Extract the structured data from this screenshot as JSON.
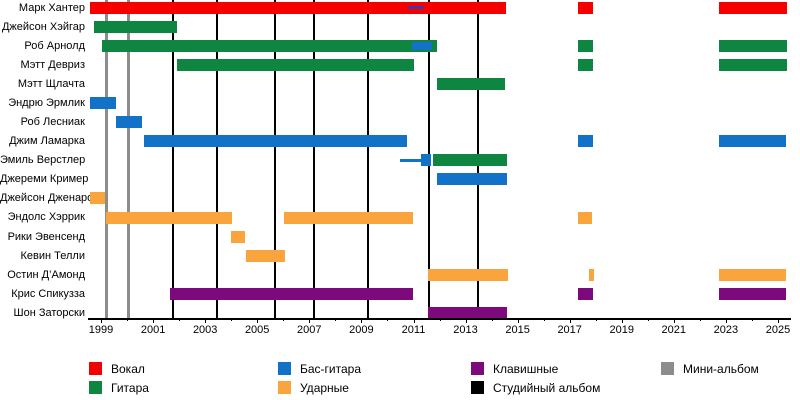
{
  "chart_data": {
    "type": "timeline",
    "title": "",
    "axis": {
      "start": 1998.5,
      "end": 2025.5,
      "minor_tick_every_years": 1,
      "labeled_tick_years": [
        1999,
        2001,
        2003,
        2005,
        2007,
        2009,
        2011,
        2013,
        2015,
        2017,
        2019,
        2021,
        2023,
        2025
      ]
    },
    "colors": {
      "vocals": "#f50000",
      "guitar": "#0e8540",
      "bass": "#1272c8",
      "drums": "#f9a43c",
      "keys": "#7d0a7d",
      "album": "#000000",
      "mini": "#8c8c8c",
      "hunter_programming": "#4335ab"
    },
    "members": [
      {
        "name": "Марк Хантер",
        "segments": [
          {
            "role": "vocals",
            "from": 1998.58,
            "to": 2014.55,
            "style": "bar"
          },
          {
            "role": "hunter_programming",
            "from": 2010.79,
            "to": 2011.4,
            "style": "thin"
          },
          {
            "role": "vocals",
            "from": 2017.3,
            "to": 2017.9,
            "style": "bar"
          },
          {
            "role": "vocals",
            "from": 2022.73,
            "to": 2025.35,
            "style": "bar"
          }
        ]
      },
      {
        "name": "Джейсон Хэйгар",
        "segments": [
          {
            "role": "guitar",
            "from": 1998.74,
            "to": 2001.93,
            "style": "bar"
          }
        ]
      },
      {
        "name": "Роб Арнолд",
        "segments": [
          {
            "role": "guitar",
            "from": 1999.05,
            "to": 2011.89,
            "style": "bar"
          },
          {
            "role": "bass",
            "from": 2010.93,
            "to": 2011.7,
            "style": "inset"
          },
          {
            "role": "guitar",
            "from": 2017.3,
            "to": 2017.9,
            "style": "bar"
          },
          {
            "role": "guitar",
            "from": 2022.73,
            "to": 2025.35,
            "style": "bar"
          }
        ]
      },
      {
        "name": "Мэтт Девриз",
        "segments": [
          {
            "role": "guitar",
            "from": 2001.93,
            "to": 2011.02,
            "style": "bar"
          },
          {
            "role": "guitar",
            "from": 2017.3,
            "to": 2017.9,
            "style": "bar"
          },
          {
            "role": "guitar",
            "from": 2022.73,
            "to": 2025.35,
            "style": "bar"
          }
        ]
      },
      {
        "name": "Мэтт Щлачта",
        "segments": [
          {
            "role": "guitar",
            "from": 2011.9,
            "to": 2014.53,
            "style": "bar"
          }
        ]
      },
      {
        "name": "Эндрю Эрмлик",
        "segments": [
          {
            "role": "bass",
            "from": 1998.58,
            "to": 1999.57,
            "style": "bar"
          }
        ]
      },
      {
        "name": "Роб Лесниак",
        "segments": [
          {
            "role": "bass",
            "from": 1999.57,
            "to": 2000.56,
            "style": "bar"
          }
        ]
      },
      {
        "name": "Джим Ламарка",
        "segments": [
          {
            "role": "bass",
            "from": 2000.66,
            "to": 2010.74,
            "style": "bar"
          },
          {
            "role": "bass",
            "from": 2017.33,
            "to": 2017.9,
            "style": "bar"
          },
          {
            "role": "bass",
            "from": 2022.74,
            "to": 2025.3,
            "style": "bar"
          }
        ]
      },
      {
        "name": "Эмиль Верстлер",
        "segments": [
          {
            "role": "bass",
            "from": 2010.48,
            "to": 2011.3,
            "style": "thin"
          },
          {
            "role": "bass",
            "from": 2011.3,
            "to": 2011.68,
            "style": "bar"
          },
          {
            "role": "guitar",
            "from": 2011.75,
            "to": 2014.58,
            "style": "bar"
          }
        ]
      },
      {
        "name": "Джереми Кример",
        "segments": [
          {
            "role": "bass",
            "from": 2011.89,
            "to": 2014.58,
            "style": "bar"
          }
        ]
      },
      {
        "name": "Джейсон Дженаро",
        "segments": [
          {
            "role": "drums",
            "from": 1998.58,
            "to": 1999.15,
            "style": "bar"
          }
        ]
      },
      {
        "name": "Эндолс Хэррик",
        "segments": [
          {
            "role": "drums",
            "from": 1999.18,
            "to": 2004.02,
            "style": "bar"
          },
          {
            "role": "drums",
            "from": 2006.03,
            "to": 2010.99,
            "style": "bar"
          },
          {
            "role": "drums",
            "from": 2017.3,
            "to": 2017.87,
            "style": "bar"
          }
        ]
      },
      {
        "name": "Рики Эвенсенд",
        "segments": [
          {
            "role": "drums",
            "from": 2003.98,
            "to": 2004.53,
            "style": "bar"
          }
        ]
      },
      {
        "name": "Кевин Телли",
        "segments": [
          {
            "role": "drums",
            "from": 2004.57,
            "to": 2006.06,
            "style": "bar"
          }
        ]
      },
      {
        "name": "Остин Д’Амонд",
        "segments": [
          {
            "role": "drums",
            "from": 2011.54,
            "to": 2014.62,
            "style": "bar"
          },
          {
            "role": "drums",
            "from": 2017.75,
            "to": 2017.92,
            "style": "bar"
          },
          {
            "role": "drums",
            "from": 2022.74,
            "to": 2025.3,
            "style": "bar"
          }
        ]
      },
      {
        "name": "Крис Спикузза",
        "segments": [
          {
            "role": "keys",
            "from": 2001.65,
            "to": 2010.99,
            "style": "bar"
          },
          {
            "role": "keys",
            "from": 2017.3,
            "to": 2017.9,
            "style": "bar"
          },
          {
            "role": "keys",
            "from": 2022.74,
            "to": 2025.3,
            "style": "bar"
          }
        ]
      },
      {
        "name": "Шон Заторски",
        "segments": [
          {
            "role": "keys",
            "from": 2011.54,
            "to": 2014.58,
            "style": "bar"
          }
        ]
      }
    ],
    "album_lines": {
      "color_role": "album",
      "years": [
        2001.76,
        2003.45,
        2005.68,
        2007.18,
        2009.27,
        2011.59,
        2013.47
      ]
    },
    "mini_album_lines": {
      "color_role": "mini",
      "years": [
        1999.22,
        2000.06
      ]
    },
    "legend": {
      "position": "bottom",
      "items": [
        {
          "label": "Вокал",
          "color_role": "vocals",
          "col": 0,
          "row": 0
        },
        {
          "label": "Гитара",
          "color_role": "guitar",
          "col": 0,
          "row": 1
        },
        {
          "label": "Бас-гитара",
          "color_role": "bass",
          "col": 1,
          "row": 0
        },
        {
          "label": "Ударные",
          "color_role": "drums",
          "col": 1,
          "row": 1
        },
        {
          "label": "Клавишные",
          "color_role": "keys",
          "col": 2,
          "row": 0
        },
        {
          "label": "Студийный альбом",
          "color_role": "album",
          "col": 2,
          "row": 1
        },
        {
          "label": "Мини-альбом",
          "color_role": "mini",
          "col": 3,
          "row": 0
        }
      ]
    }
  }
}
